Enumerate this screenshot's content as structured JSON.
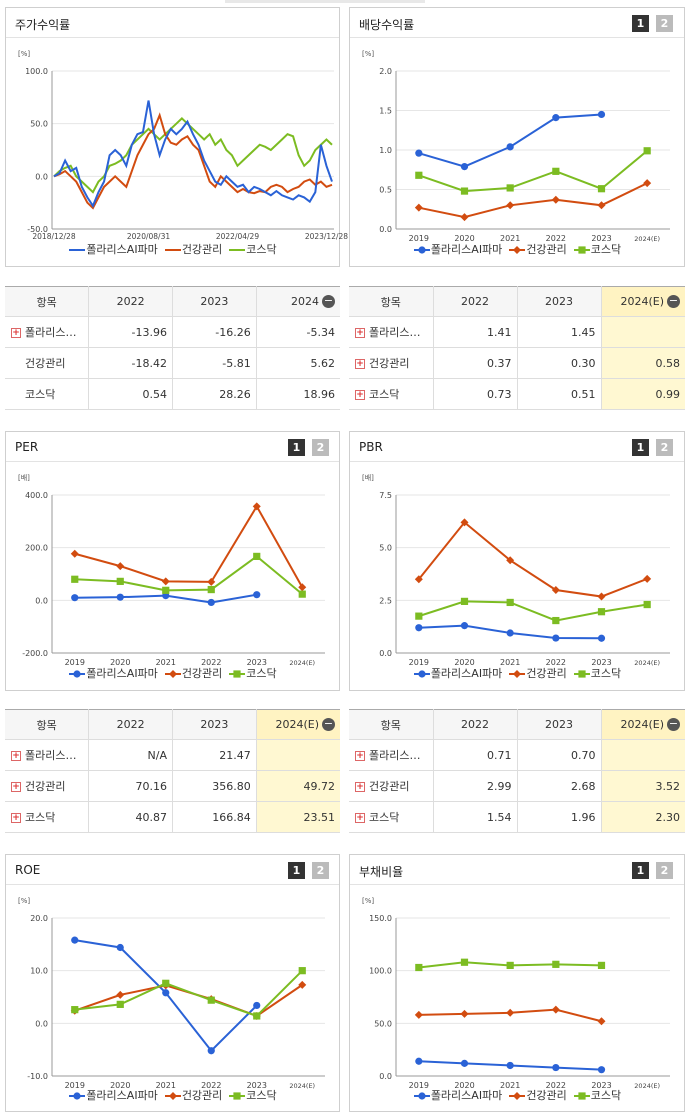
{
  "colors": {
    "pharma": "#2a62d6",
    "health": "#d24c10",
    "kosdaq": "#7cbc22"
  },
  "series_names": [
    "폴라리스AI파마",
    "건강관리",
    "코스닥"
  ],
  "toggle": {
    "one": "1",
    "two": "2"
  },
  "panels": {
    "stock_return": {
      "title": "주가수익률"
    },
    "dividend": {
      "title": "배당수익률"
    },
    "per": {
      "title": "PER"
    },
    "pbr": {
      "title": "PBR"
    },
    "roe": {
      "title": "ROE"
    },
    "debt": {
      "title": "부채비율"
    }
  },
  "tables": {
    "stock_return": {
      "headers": [
        "항목",
        "2022",
        "2023",
        "2024"
      ],
      "rows": [
        {
          "name": "폴라리스…",
          "values": [
            "-13.96",
            "-16.26",
            "-5.34"
          ],
          "plus": true
        },
        {
          "name": "건강관리",
          "values": [
            "-18.42",
            "-5.81",
            "5.62"
          ],
          "plus": false
        },
        {
          "name": "코스닥",
          "values": [
            "0.54",
            "28.26",
            "18.96"
          ],
          "plus": false
        }
      ]
    },
    "dividend": {
      "headers": [
        "항목",
        "2022",
        "2023",
        "2024(E)"
      ],
      "rows": [
        {
          "name": "폴라리스…",
          "values": [
            "1.41",
            "1.45",
            ""
          ],
          "plus": true
        },
        {
          "name": "건강관리",
          "values": [
            "0.37",
            "0.30",
            "0.58"
          ],
          "plus": true
        },
        {
          "name": "코스닥",
          "values": [
            "0.73",
            "0.51",
            "0.99"
          ],
          "plus": true
        }
      ]
    },
    "per": {
      "headers": [
        "항목",
        "2022",
        "2023",
        "2024(E)"
      ],
      "rows": [
        {
          "name": "폴라리스…",
          "values": [
            "N/A",
            "21.47",
            ""
          ],
          "plus": true
        },
        {
          "name": "건강관리",
          "values": [
            "70.16",
            "356.80",
            "49.72"
          ],
          "plus": true
        },
        {
          "name": "코스닥",
          "values": [
            "40.87",
            "166.84",
            "23.51"
          ],
          "plus": true
        }
      ]
    },
    "pbr": {
      "headers": [
        "항목",
        "2022",
        "2023",
        "2024(E)"
      ],
      "rows": [
        {
          "name": "폴라리스…",
          "values": [
            "0.71",
            "0.70",
            ""
          ],
          "plus": true
        },
        {
          "name": "건강관리",
          "values": [
            "2.99",
            "2.68",
            "3.52"
          ],
          "plus": true
        },
        {
          "name": "코스닥",
          "values": [
            "1.54",
            "1.96",
            "2.30"
          ],
          "plus": true
        }
      ]
    }
  },
  "chart_data": [
    {
      "id": "stock_return",
      "type": "line",
      "unit": "[%]",
      "ylim": [
        -50,
        100
      ],
      "yticks": [
        "100.0",
        "50.0",
        "0.0",
        "-50.0"
      ],
      "xticks": [
        "2018/12/28",
        "2020/08/31",
        "2022/04/29",
        "2023/12/28"
      ],
      "series": [
        {
          "name": "폴라리스AI파마",
          "values": [
            0,
            3,
            15,
            5,
            8,
            -10,
            -20,
            -28,
            -15,
            -5,
            20,
            25,
            20,
            10,
            30,
            40,
            42,
            72,
            40,
            20,
            35,
            45,
            40,
            45,
            52,
            40,
            30,
            15,
            5,
            -5,
            -8,
            0,
            -5,
            -10,
            -8,
            -15,
            -10,
            -12,
            -15,
            -18,
            -14,
            -18,
            -20,
            -22,
            -18,
            -20,
            -24,
            -15,
            30,
            10,
            -5
          ]
        },
        {
          "name": "건강관리",
          "values": [
            0,
            2,
            5,
            0,
            -5,
            -15,
            -25,
            -30,
            -20,
            -10,
            -5,
            0,
            -5,
            -10,
            5,
            20,
            30,
            40,
            45,
            58,
            40,
            32,
            30,
            35,
            38,
            30,
            25,
            10,
            -5,
            -10,
            0,
            -5,
            -10,
            -15,
            -12,
            -15,
            -16,
            -14,
            -15,
            -10,
            -8,
            -10,
            -15,
            -12,
            -10,
            -5,
            -3,
            -8,
            -5,
            -10,
            -8
          ]
        },
        {
          "name": "코스닥",
          "values": [
            0,
            5,
            8,
            10,
            0,
            -5,
            -10,
            -15,
            -5,
            0,
            10,
            12,
            15,
            20,
            30,
            35,
            40,
            45,
            40,
            35,
            40,
            45,
            50,
            55,
            50,
            45,
            40,
            35,
            40,
            30,
            35,
            25,
            20,
            10,
            15,
            20,
            25,
            30,
            28,
            25,
            30,
            35,
            40,
            38,
            20,
            10,
            15,
            25,
            30,
            35,
            30
          ]
        }
      ]
    },
    {
      "id": "dividend",
      "type": "line",
      "unit": "[%]",
      "ylim": [
        0,
        2.0
      ],
      "yticks": [
        "2.0",
        "1.5",
        "1.0",
        "0.5",
        "0.0"
      ],
      "categories": [
        "2019",
        "2020",
        "2021",
        "2022",
        "2023",
        "2024(E)"
      ],
      "series": [
        {
          "name": "폴라리스AI파마",
          "values": [
            0.96,
            0.79,
            1.04,
            1.41,
            1.45,
            null
          ]
        },
        {
          "name": "건강관리",
          "values": [
            0.27,
            0.15,
            0.3,
            0.37,
            0.3,
            0.58
          ]
        },
        {
          "name": "코스닥",
          "values": [
            0.68,
            0.48,
            0.52,
            0.73,
            0.51,
            0.99
          ]
        }
      ]
    },
    {
      "id": "per",
      "type": "line",
      "unit": "[배]",
      "ylim": [
        -200,
        400
      ],
      "yticks": [
        "400.0",
        "200.0",
        "0.0",
        "-200.0"
      ],
      "categories": [
        "2019",
        "2020",
        "2021",
        "2022",
        "2023",
        "2024(E)"
      ],
      "series": [
        {
          "name": "폴라리스AI파마",
          "values": [
            10,
            12,
            18,
            -8,
            21.47,
            null
          ]
        },
        {
          "name": "건강관리",
          "values": [
            177,
            130,
            72,
            70.16,
            356.8,
            49.72
          ]
        },
        {
          "name": "코스닥",
          "values": [
            80,
            72,
            38,
            40.87,
            166.84,
            23.51
          ]
        }
      ]
    },
    {
      "id": "pbr",
      "type": "line",
      "unit": "[배]",
      "ylim": [
        0,
        7.5
      ],
      "yticks": [
        "7.5",
        "5.0",
        "2.5",
        "0.0"
      ],
      "categories": [
        "2019",
        "2020",
        "2021",
        "2022",
        "2023",
        "2024(E)"
      ],
      "series": [
        {
          "name": "폴라리스AI파마",
          "values": [
            1.2,
            1.3,
            0.95,
            0.71,
            0.7,
            null
          ]
        },
        {
          "name": "건강관리",
          "values": [
            3.5,
            6.2,
            4.4,
            2.99,
            2.68,
            3.52
          ]
        },
        {
          "name": "코스닥",
          "values": [
            1.75,
            2.45,
            2.4,
            1.54,
            1.96,
            2.3
          ]
        }
      ]
    },
    {
      "id": "roe",
      "type": "line",
      "unit": "[%]",
      "ylim": [
        -10,
        20
      ],
      "yticks": [
        "20.0",
        "10.0",
        "0.0",
        "-10.0"
      ],
      "categories": [
        "2019",
        "2020",
        "2021",
        "2022",
        "2023",
        "2024(E)"
      ],
      "series": [
        {
          "name": "폴라리스AI파마",
          "values": [
            15.8,
            14.4,
            5.8,
            -5.2,
            3.4,
            null
          ]
        },
        {
          "name": "건강관리",
          "values": [
            2.4,
            5.4,
            7.2,
            4.6,
            1.4,
            7.3
          ]
        },
        {
          "name": "코스닥",
          "values": [
            2.6,
            3.6,
            7.6,
            4.4,
            1.4,
            10.0
          ]
        }
      ]
    },
    {
      "id": "debt",
      "type": "line",
      "unit": "[%]",
      "ylim": [
        0,
        150
      ],
      "yticks": [
        "150.0",
        "100.0",
        "50.0",
        "0.0"
      ],
      "categories": [
        "2019",
        "2020",
        "2021",
        "2022",
        "2023",
        "2024(E)"
      ],
      "series": [
        {
          "name": "폴라리스AI파마",
          "values": [
            14,
            12,
            10,
            8,
            6,
            null
          ]
        },
        {
          "name": "건강관리",
          "values": [
            58,
            59,
            60,
            63,
            52,
            null
          ]
        },
        {
          "name": "코스닥",
          "values": [
            103,
            108,
            105,
            106,
            105,
            null
          ]
        }
      ]
    }
  ]
}
